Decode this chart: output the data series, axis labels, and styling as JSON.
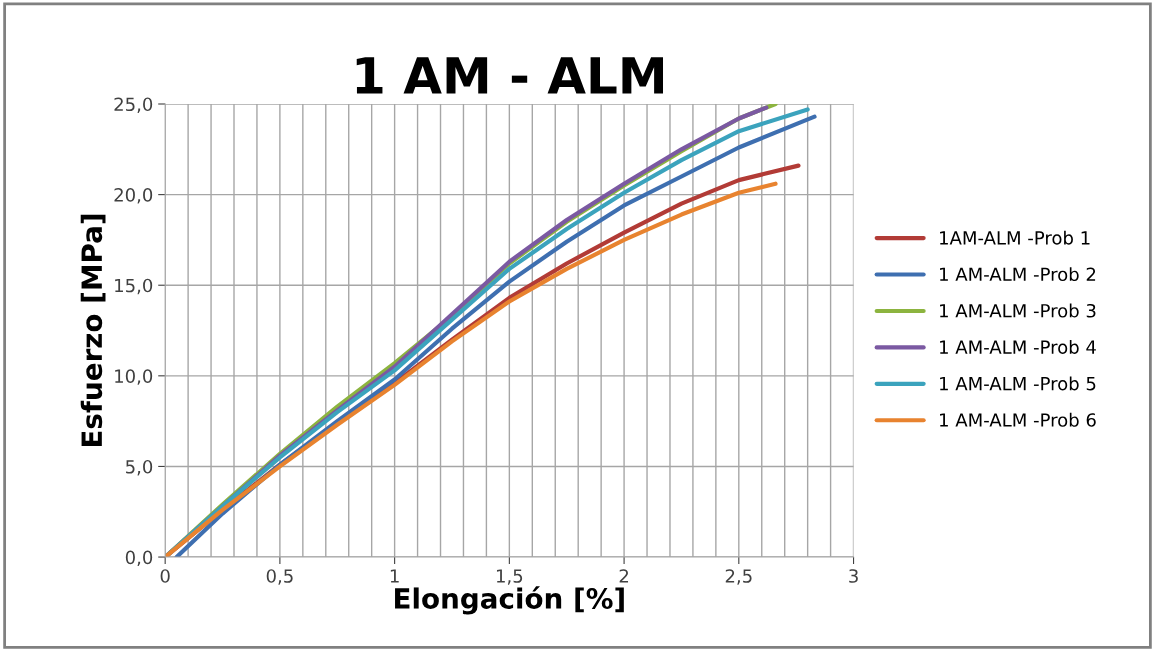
{
  "chart_data": {
    "type": "line",
    "title": "1 AM - ALM",
    "xlabel": "Elongación [%]",
    "ylabel": "Esfuerzo [MPa]",
    "xlim": [
      0,
      3
    ],
    "ylim": [
      0,
      25
    ],
    "xticks": [
      0,
      {
        "value": 0.5,
        "label": "0,5"
      },
      1,
      {
        "value": 1.5,
        "label": "1,5"
      },
      2,
      {
        "value": 2.5,
        "label": "2,5"
      },
      3
    ],
    "yticks": [
      {
        "value": 0,
        "label": "0,0"
      },
      {
        "value": 5,
        "label": "5,0"
      },
      {
        "value": 10,
        "label": "10,0"
      },
      {
        "value": 15,
        "label": "15,0"
      },
      {
        "value": 20,
        "label": "20,0"
      },
      {
        "value": 25,
        "label": "25,0"
      }
    ],
    "grid": true,
    "legend": "right",
    "marker": "none",
    "line_style": "solid",
    "series": [
      {
        "name": "1AM-ALM -Prob 1",
        "color": "#b23b36",
        "x": [
          0,
          0.25,
          0.5,
          0.75,
          1,
          1.25,
          1.5,
          1.75,
          2,
          2.25,
          2.5,
          2.76
        ],
        "values": [
          0,
          2.6,
          5.1,
          7.4,
          9.6,
          12.0,
          14.3,
          16.2,
          17.9,
          19.5,
          20.8,
          21.6
        ]
      },
      {
        "name": "1 AM-ALM -Prob 2",
        "color": "#3e6fb0",
        "x": [
          0.05,
          0.25,
          0.5,
          0.75,
          1,
          1.25,
          1.5,
          1.75,
          2,
          2.25,
          2.5,
          2.83
        ],
        "values": [
          0,
          2.4,
          5.1,
          7.5,
          9.8,
          12.6,
          15.2,
          17.4,
          19.4,
          21.0,
          22.6,
          24.3
        ]
      },
      {
        "name": "1 AM-ALM -Prob 3",
        "color": "#8cb43f",
        "x": [
          0,
          0.25,
          0.5,
          0.75,
          1,
          1.25,
          1.5,
          1.75,
          2,
          2.25,
          2.5,
          2.66
        ],
        "values": [
          0,
          2.9,
          5.7,
          8.3,
          10.7,
          13.3,
          16.2,
          18.5,
          20.5,
          22.4,
          24.2,
          25.0
        ]
      },
      {
        "name": "1 AM-ALM -Prob 4",
        "color": "#7b59a2",
        "x": [
          0,
          0.25,
          0.5,
          0.75,
          1,
          1.25,
          1.5,
          1.75,
          2,
          2.25,
          2.5,
          2.62
        ],
        "values": [
          0,
          2.8,
          5.6,
          8.1,
          10.5,
          13.4,
          16.3,
          18.6,
          20.6,
          22.5,
          24.2,
          24.8
        ]
      },
      {
        "name": "1 AM-ALM -Prob 5",
        "color": "#3ba3bd",
        "x": [
          0,
          0.25,
          0.5,
          0.75,
          1,
          1.25,
          1.5,
          1.75,
          2,
          2.25,
          2.5,
          2.8
        ],
        "values": [
          0,
          2.8,
          5.5,
          8.0,
          10.3,
          13.1,
          15.9,
          18.1,
          20.1,
          21.9,
          23.5,
          24.7
        ]
      },
      {
        "name": "1 AM-ALM -Prob 6",
        "color": "#e8832f",
        "x": [
          0,
          0.25,
          0.5,
          0.75,
          1,
          1.25,
          1.5,
          1.75,
          2,
          2.25,
          2.5,
          2.66
        ],
        "values": [
          0,
          2.6,
          5.0,
          7.3,
          9.5,
          11.9,
          14.1,
          15.9,
          17.5,
          18.9,
          20.1,
          20.6
        ]
      }
    ]
  }
}
